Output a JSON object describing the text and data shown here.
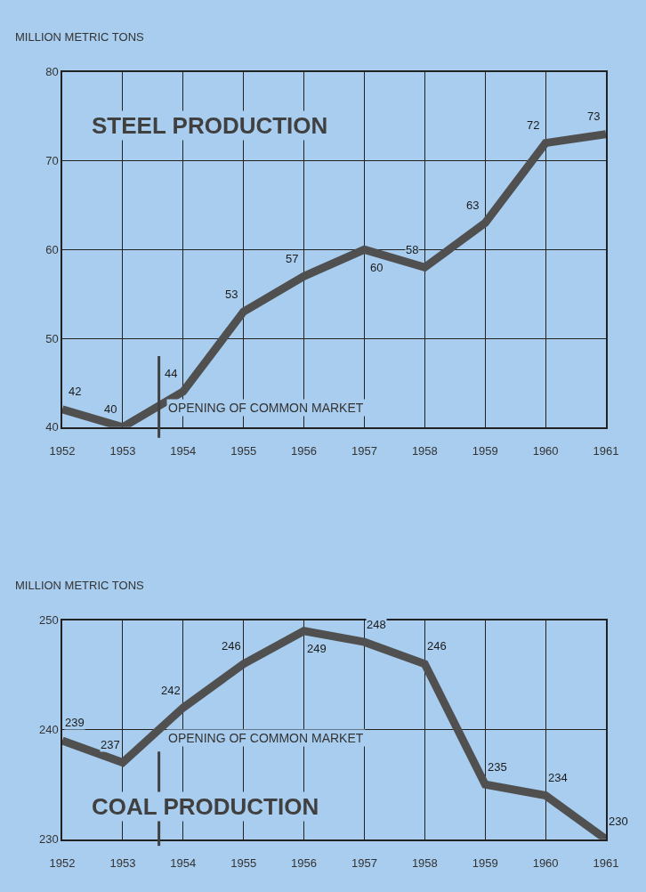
{
  "chart_data": [
    {
      "type": "line",
      "title": "STEEL PRODUCTION",
      "ylabel": "MILLION METRIC TONS",
      "x": [
        1952,
        1953,
        1954,
        1955,
        1956,
        1957,
        1958,
        1959,
        1960,
        1961
      ],
      "series": [
        {
          "color": "#505050",
          "values": [
            42,
            40,
            44,
            53,
            57,
            60,
            58,
            63,
            72,
            73
          ]
        }
      ],
      "xlim": [
        1952,
        1961
      ],
      "xticks": [
        1952,
        1953,
        1954,
        1955,
        1956,
        1957,
        1958,
        1959,
        1960,
        1961
      ],
      "ylim": [
        40,
        80
      ],
      "yticks": [
        40,
        50,
        60,
        70,
        80
      ],
      "grid": true,
      "data_labels": true,
      "marker": "none",
      "line_style": "solid",
      "ref_lines": [
        {
          "axis": "x",
          "value": 1953.6,
          "label": "OPENING OF COMMON MARKET",
          "color": "#404040"
        }
      ]
    },
    {
      "type": "line",
      "title": "COAL PRODUCTION",
      "ylabel": "MILLION METRIC TONS",
      "x": [
        1952,
        1953,
        1954,
        1955,
        1956,
        1957,
        1958,
        1959,
        1960,
        1961
      ],
      "series": [
        {
          "color": "#505050",
          "values": [
            239,
            237,
            242,
            246,
            249,
            248,
            246,
            235,
            234,
            230
          ]
        }
      ],
      "xlim": [
        1952,
        1961
      ],
      "xticks": [
        1952,
        1953,
        1954,
        1955,
        1956,
        1957,
        1958,
        1959,
        1960,
        1961
      ],
      "ylim": [
        230,
        250
      ],
      "yticks": [
        230,
        240,
        250
      ],
      "grid": true,
      "data_labels": true,
      "marker": "none",
      "line_style": "solid",
      "ref_lines": [
        {
          "axis": "x",
          "value": 1953.6,
          "label": "OPENING OF COMMON MARKET",
          "color": "#404040"
        }
      ]
    }
  ]
}
